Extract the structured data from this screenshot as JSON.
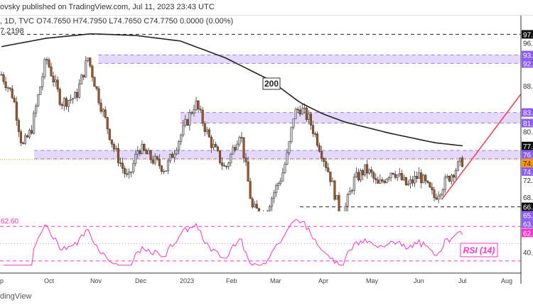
{
  "header": {
    "published": "ovsky published on TradingView.com, Jul 11, 2023 23:43 UTC",
    "ohlc": ", 1D, TVC  O74.7650  H74.7950  L74.7650  C74.7750  0.0000 (0.00%)",
    "ma_value": "7.2198"
  },
  "footer": {
    "brand": "dingView"
  },
  "chart_data": {
    "type": "candlestick",
    "title": "TVC, 1D",
    "x_tick_labels": [
      "p",
      "Oct",
      "Nov",
      "Dec",
      "2023",
      "Feb",
      "Mar",
      "Apr",
      "May",
      "Jun",
      "Jul",
      "Aug"
    ],
    "price_path_days": [
      0,
      8,
      14,
      20,
      30,
      40,
      50,
      58,
      65,
      75,
      85,
      92,
      100,
      110,
      120,
      130,
      140,
      150,
      160,
      168,
      176,
      188,
      192,
      196,
      200,
      206,
      212,
      220,
      228,
      236,
      244,
      248,
      252,
      262,
      272,
      280,
      290,
      298,
      304,
      310
    ],
    "price_path": [
      90,
      86,
      77,
      80,
      93,
      85,
      86,
      93,
      86,
      77,
      71,
      77,
      75,
      73,
      79,
      85,
      78,
      73,
      80,
      66,
      65,
      72,
      76,
      83,
      84,
      82,
      78,
      72,
      64,
      71,
      73,
      72,
      70,
      73,
      70,
      72,
      68,
      71,
      73,
      74.78
    ],
    "ma200_days": [
      0,
      30,
      60,
      90,
      120,
      150,
      180,
      200,
      215,
      230,
      260,
      290,
      310
    ],
    "ma200": [
      95,
      96.5,
      97.3,
      97,
      96,
      93,
      89,
      85,
      83,
      81.5,
      79.5,
      77.8,
      77.2
    ],
    "ma_label": "200",
    "zones": [
      {
        "from_day": 65,
        "low": 92.0,
        "high": 93.5
      },
      {
        "from_day": 120,
        "low": 81.3,
        "high": 83.2
      },
      {
        "from_day": 22,
        "low": 74.9,
        "high": 76.4
      },
      {
        "from_day": 192,
        "low": 63.3,
        "high": 65.3
      }
    ],
    "dashed_levels": [
      {
        "price": 97.2,
        "from_day": 0
      },
      {
        "price": 66.3,
        "from_day": 200
      }
    ],
    "last_price": 74.78,
    "trendline": {
      "from": {
        "day": 295,
        "price": 67.6
      },
      "to": {
        "day": 345,
        "price": 86.5
      }
    },
    "price_axis_labels": [
      {
        "text": "97.",
        "price": 97.2,
        "style": "black"
      },
      {
        "text": "96.",
        "price": 96,
        "style": "plain"
      },
      {
        "text": "93.",
        "price": 93.5,
        "style": "purple"
      },
      {
        "text": "92.",
        "price": 92,
        "style": "purple"
      },
      {
        "text": "88.",
        "price": 88,
        "style": "plain"
      },
      {
        "text": "83.",
        "price": 83.2,
        "style": "purple"
      },
      {
        "text": "81.",
        "price": 81.3,
        "style": "purple"
      },
      {
        "text": "80.",
        "price": 80,
        "style": "plain"
      },
      {
        "text": "77.",
        "price": 77.2,
        "style": "black"
      },
      {
        "text": "76.",
        "price": 76.4,
        "style": "purple"
      },
      {
        "text": "74.",
        "price": 74.78,
        "style": "orange"
      },
      {
        "text": "74.",
        "price": 73.4,
        "style": "purple"
      },
      {
        "text": "72.",
        "price": 72,
        "style": "plain"
      },
      {
        "text": "68.",
        "price": 68,
        "style": "plain"
      },
      {
        "text": "66.",
        "price": 66.3,
        "style": "black"
      },
      {
        "text": "65.",
        "price": 65.3,
        "style": "purple"
      },
      {
        "text": "63.",
        "price": 63.6,
        "style": "purple"
      }
    ],
    "rsi": {
      "label": "RSI (14)",
      "current": 62.6,
      "current_label": "62.",
      "left_label": "62.60",
      "axis_label": "40.",
      "levels": [
        70,
        30
      ]
    },
    "colors": {
      "up": "#c9c9c9",
      "down": "#a3541e",
      "zone": "#e4d9fb",
      "zone_line": "#9c7cf0",
      "purple": "#8b5cf6",
      "orange": "#ff9800",
      "rsi": "#ff33cc",
      "trend": "#f0445a"
    }
  }
}
